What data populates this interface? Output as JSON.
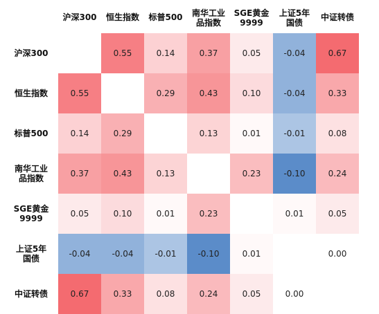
{
  "chart_data": {
    "type": "heatmap",
    "column_labels": [
      "沪深300",
      "恒生指数",
      "标普500",
      "南华工业\n品指数",
      "SGE黄金\n9999",
      "上证5年\n国债",
      "中证转债"
    ],
    "row_labels": [
      "沪深300",
      "恒生指数",
      "标普500",
      "南华工业\n品指数",
      "SGE黄金\n9999",
      "上证5年\n国债",
      "中证转债"
    ],
    "values": [
      [
        null,
        "0.55",
        "0.14",
        "0.37",
        "0.05",
        "-0.04",
        "0.67"
      ],
      [
        "0.55",
        null,
        "0.29",
        "0.43",
        "0.10",
        "-0.04",
        "0.33"
      ],
      [
        "0.14",
        "0.29",
        null,
        "0.13",
        "0.01",
        "-0.01",
        "0.08"
      ],
      [
        "0.37",
        "0.43",
        "0.13",
        null,
        "0.23",
        "-0.10",
        "0.24"
      ],
      [
        "0.05",
        "0.10",
        "0.01",
        "0.23",
        null,
        "0.01",
        "0.05"
      ],
      [
        "-0.04",
        "-0.04",
        "-0.01",
        "-0.10",
        "0.01",
        null,
        "0.00"
      ],
      [
        "0.67",
        "0.33",
        "0.08",
        "0.24",
        "0.05",
        "0.00",
        null
      ]
    ],
    "colors": {
      "positive_max": "#f46b70",
      "neutral": "#ffffff",
      "negative_max": "#5b8cc9",
      "diagonal": "#ffffff"
    }
  }
}
